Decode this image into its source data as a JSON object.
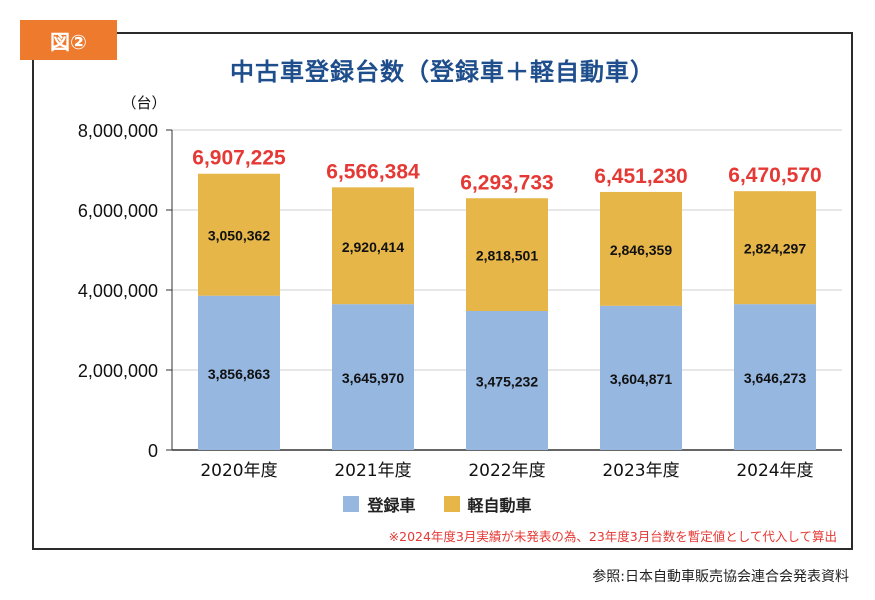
{
  "figure_tag": "図②",
  "colors": {
    "registered": "#95b7e0",
    "kei": "#e6b649",
    "total_label": "#e53935",
    "title": "#1f4e8c",
    "tag_bg": "#ee7a2e"
  },
  "chart_data": {
    "type": "bar",
    "stacked": true,
    "title": "中古車登録台数（登録車＋軽自動車）",
    "ylabel": "（台）",
    "xlabel": "",
    "ylim": [
      0,
      8000000
    ],
    "y_ticks": [
      0,
      2000000,
      4000000,
      6000000,
      8000000
    ],
    "y_tick_labels": [
      "0",
      "2,000,000",
      "4,000,000",
      "6,000,000",
      "8,000,000"
    ],
    "grid": true,
    "legend_position": "bottom",
    "categories": [
      "2020年度",
      "2021年度",
      "2022年度",
      "2023年度",
      "2024年度"
    ],
    "series": [
      {
        "name": "登録車",
        "values": [
          3856863,
          3645970,
          3475232,
          3604871,
          3646273
        ],
        "labels": [
          "3,856,863",
          "3,645,970",
          "3,475,232",
          "3,604,871",
          "3,646,273"
        ]
      },
      {
        "name": "軽自動車",
        "values": [
          3050362,
          2920414,
          2818501,
          2846359,
          2824297
        ],
        "labels": [
          "3,050,362",
          "2,920,414",
          "2,818,501",
          "2,846,359",
          "2,824,297"
        ]
      }
    ],
    "totals": [
      6907225,
      6566384,
      6293733,
      6451230,
      6470570
    ],
    "total_labels": [
      "6,907,225",
      "6,566,384",
      "6,293,733",
      "6,451,230",
      "6,470,570"
    ]
  },
  "note": "※2024年度3月実績が未発表の為、23年度3月台数を暫定値として代入して算出",
  "source": "参照:日本自動車販売協会連合会発表資料"
}
